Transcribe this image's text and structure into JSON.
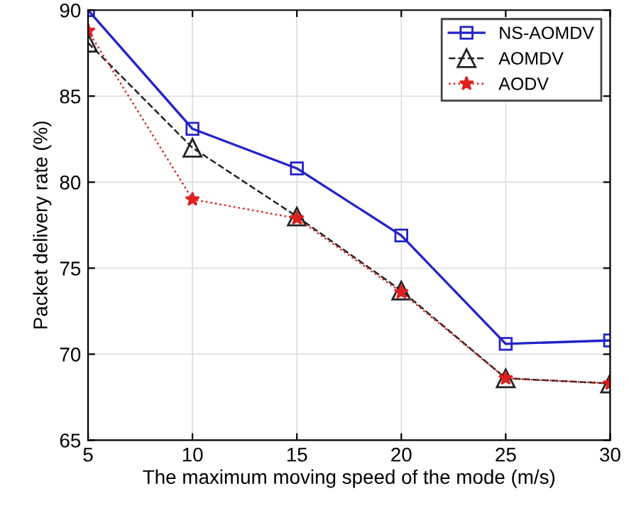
{
  "chart_data": {
    "type": "line",
    "xlabel": "The maximum moving speed of the mode (m/s)",
    "ylabel": "Packet delivery rate (%)",
    "x": [
      5,
      10,
      15,
      20,
      25,
      30
    ],
    "series": [
      {
        "name": "NS-AOMDV",
        "color": "#2323c8",
        "marker": "square",
        "line_style": "solid",
        "values": [
          90,
          83.1,
          80.8,
          76.9,
          70.6,
          70.8
        ]
      },
      {
        "name": "AOMDV",
        "color": "#222222",
        "marker": "triangle",
        "line_style": "dashed",
        "values": [
          88.1,
          82,
          78,
          73.7,
          68.6,
          68.3
        ]
      },
      {
        "name": "AODV",
        "color": "#e02020",
        "marker": "star",
        "line_style": "dotted",
        "values": [
          88.8,
          79,
          77.9,
          73.6,
          68.6,
          68.3
        ]
      }
    ],
    "xlim": [
      5,
      30
    ],
    "xticks": [
      5,
      10,
      15,
      20,
      25,
      30
    ],
    "ylim": [
      65,
      90
    ],
    "yticks": [
      65,
      70,
      75,
      80,
      85,
      90
    ],
    "grid": true,
    "legend": "top right"
  }
}
